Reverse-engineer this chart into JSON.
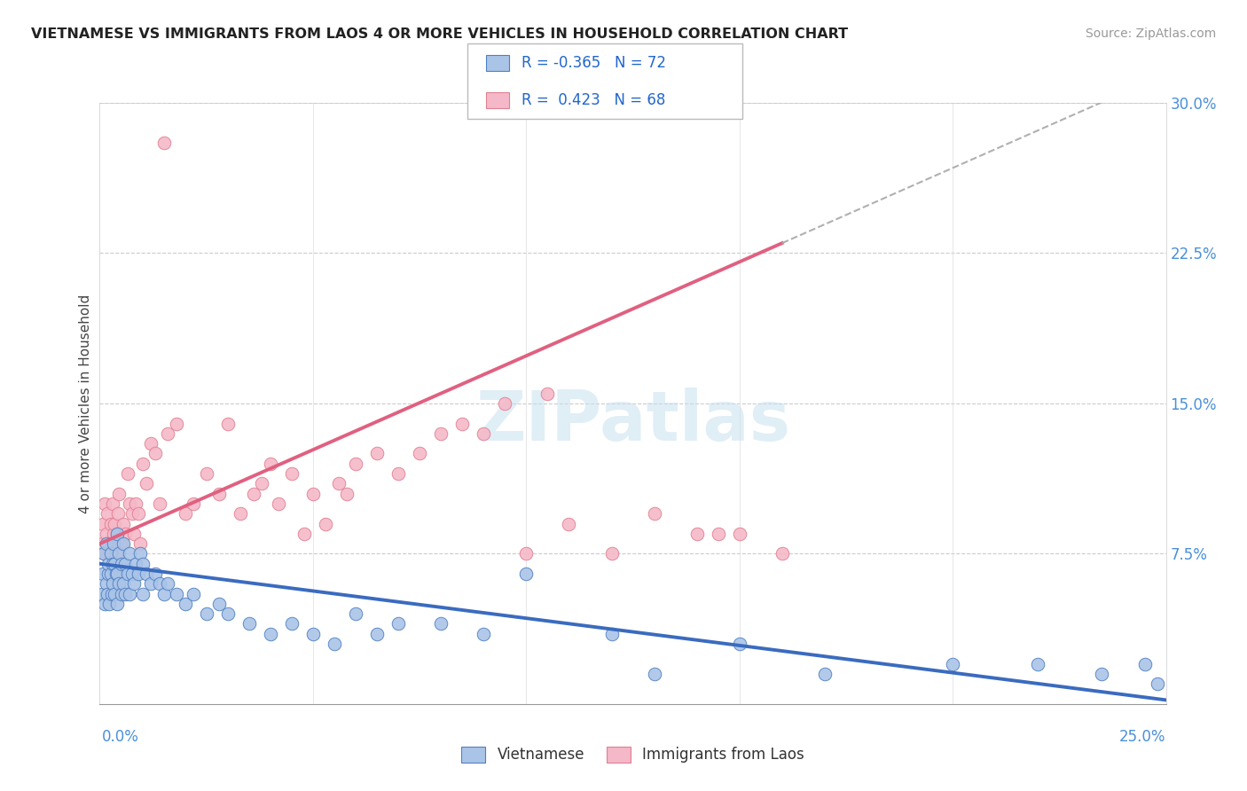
{
  "title": "VIETNAMESE VS IMMIGRANTS FROM LAOS 4 OR MORE VEHICLES IN HOUSEHOLD CORRELATION CHART",
  "source": "Source: ZipAtlas.com",
  "ylabel_label": "4 or more Vehicles in Household",
  "x_min": 0.0,
  "x_max": 25.0,
  "y_min": 0.0,
  "y_max": 30.0,
  "R_blue": -0.365,
  "N_blue": 72,
  "R_pink": 0.423,
  "N_pink": 68,
  "legend_label_blue": "Vietnamese",
  "legend_label_pink": "Immigrants from Laos",
  "blue_color": "#aac4e8",
  "pink_color": "#f5b8c8",
  "blue_line_color": "#3a6bbf",
  "pink_line_color": "#e06080",
  "blue_edge_color": "#5080c0",
  "pink_edge_color": "#e08090",
  "blue_scatter_x": [
    0.05,
    0.08,
    0.1,
    0.12,
    0.15,
    0.15,
    0.18,
    0.2,
    0.2,
    0.22,
    0.25,
    0.25,
    0.28,
    0.3,
    0.3,
    0.32,
    0.35,
    0.35,
    0.38,
    0.4,
    0.4,
    0.4,
    0.45,
    0.45,
    0.5,
    0.5,
    0.55,
    0.55,
    0.6,
    0.6,
    0.65,
    0.7,
    0.7,
    0.75,
    0.8,
    0.85,
    0.9,
    0.95,
    1.0,
    1.0,
    1.1,
    1.2,
    1.3,
    1.4,
    1.5,
    1.6,
    1.8,
    2.0,
    2.2,
    2.5,
    2.8,
    3.0,
    3.5,
    4.0,
    4.5,
    5.0,
    5.5,
    6.0,
    6.5,
    7.0,
    8.0,
    9.0,
    10.0,
    12.0,
    13.0,
    15.0,
    17.0,
    20.0,
    22.0,
    23.5,
    24.5,
    24.8
  ],
  "blue_scatter_y": [
    5.5,
    6.5,
    7.5,
    5.0,
    6.0,
    8.0,
    5.5,
    6.5,
    7.0,
    5.0,
    6.5,
    7.5,
    5.5,
    6.0,
    7.0,
    8.0,
    5.5,
    7.0,
    6.5,
    5.0,
    6.5,
    8.5,
    6.0,
    7.5,
    5.5,
    7.0,
    6.0,
    8.0,
    5.5,
    7.0,
    6.5,
    5.5,
    7.5,
    6.5,
    6.0,
    7.0,
    6.5,
    7.5,
    5.5,
    7.0,
    6.5,
    6.0,
    6.5,
    6.0,
    5.5,
    6.0,
    5.5,
    5.0,
    5.5,
    4.5,
    5.0,
    4.5,
    4.0,
    3.5,
    4.0,
    3.5,
    3.0,
    4.5,
    3.5,
    4.0,
    4.0,
    3.5,
    6.5,
    3.5,
    1.5,
    3.0,
    1.5,
    2.0,
    2.0,
    1.5,
    2.0,
    1.0
  ],
  "pink_scatter_x": [
    0.05,
    0.08,
    0.1,
    0.12,
    0.15,
    0.18,
    0.2,
    0.22,
    0.25,
    0.28,
    0.3,
    0.32,
    0.35,
    0.38,
    0.4,
    0.42,
    0.45,
    0.5,
    0.55,
    0.6,
    0.65,
    0.7,
    0.75,
    0.8,
    0.85,
    0.9,
    0.95,
    1.0,
    1.1,
    1.2,
    1.3,
    1.4,
    1.5,
    1.6,
    1.8,
    2.0,
    2.2,
    2.5,
    2.8,
    3.0,
    3.3,
    3.6,
    3.8,
    4.0,
    4.2,
    4.5,
    4.8,
    5.0,
    5.3,
    5.6,
    5.8,
    6.0,
    6.5,
    7.0,
    7.5,
    8.0,
    8.5,
    9.0,
    9.5,
    10.0,
    10.5,
    11.0,
    12.0,
    13.0,
    14.0,
    14.5,
    15.0,
    16.0
  ],
  "pink_scatter_y": [
    8.0,
    9.0,
    7.5,
    10.0,
    8.5,
    9.5,
    7.5,
    8.0,
    9.0,
    7.5,
    10.0,
    8.5,
    9.0,
    7.5,
    8.5,
    9.5,
    10.5,
    8.0,
    9.0,
    8.5,
    11.5,
    10.0,
    9.5,
    8.5,
    10.0,
    9.5,
    8.0,
    12.0,
    11.0,
    13.0,
    12.5,
    10.0,
    28.0,
    13.5,
    14.0,
    9.5,
    10.0,
    11.5,
    10.5,
    14.0,
    9.5,
    10.5,
    11.0,
    12.0,
    10.0,
    11.5,
    8.5,
    10.5,
    9.0,
    11.0,
    10.5,
    12.0,
    12.5,
    11.5,
    12.5,
    13.5,
    14.0,
    13.5,
    15.0,
    7.5,
    15.5,
    9.0,
    7.5,
    9.5,
    8.5,
    8.5,
    8.5,
    7.5
  ]
}
